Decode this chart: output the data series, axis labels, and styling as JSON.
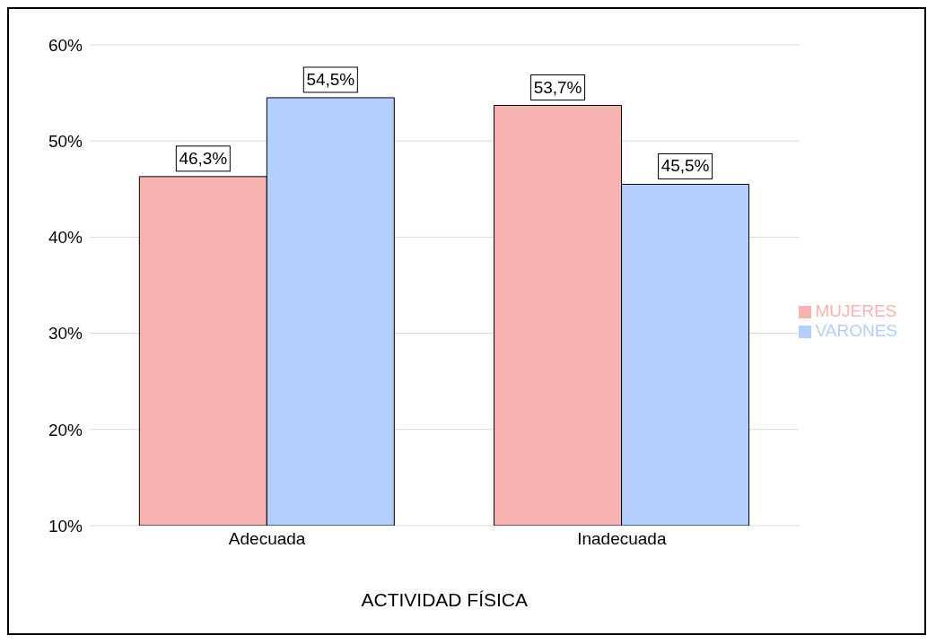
{
  "chart_data": {
    "type": "bar",
    "xlabel": "ACTIVIDAD FÍSICA",
    "categories": [
      "Adecuada",
      "Inadecuada"
    ],
    "series": [
      {
        "name": "MUJERES",
        "color": "#f8b4b0",
        "values": [
          46.3,
          53.7
        ],
        "value_labels": [
          "46,3%",
          "53,7%"
        ]
      },
      {
        "name": "VARONES",
        "color": "#b4cffc",
        "values": [
          54.5,
          45.5
        ],
        "value_labels": [
          "54,5%",
          "45,5%"
        ]
      }
    ],
    "ylim": [
      10,
      60
    ],
    "yticks": [
      {
        "value": 10,
        "label": "10%"
      },
      {
        "value": 20,
        "label": "20%"
      },
      {
        "value": 30,
        "label": "30%"
      },
      {
        "value": 40,
        "label": "40%"
      },
      {
        "value": 50,
        "label": "50%"
      },
      {
        "value": 60,
        "label": "60%"
      }
    ],
    "grid": "y",
    "legend": "right"
  }
}
